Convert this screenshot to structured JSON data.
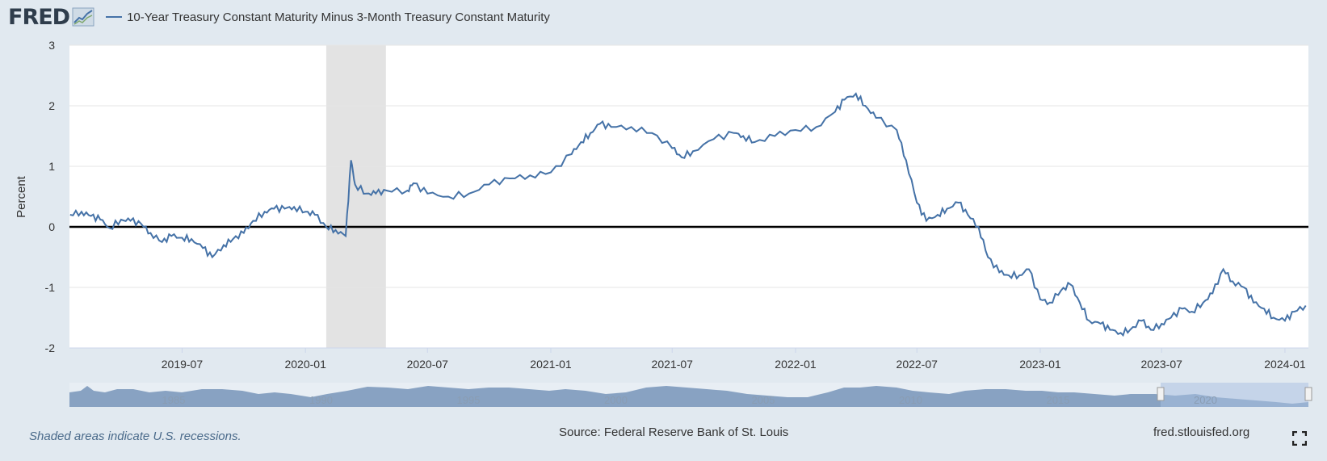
{
  "header": {
    "logo_text": "FRED",
    "legend_label": "10-Year Treasury Constant Maturity Minus 3-Month Treasury Constant Maturity",
    "series_color": "#4572a7"
  },
  "footer": {
    "recession_note": "Shaded areas indicate U.S. recessions.",
    "source": "Source: Federal Reserve Bank of St. Louis",
    "site": "fred.stlouisfed.org"
  },
  "navigator": {
    "labels": [
      "1985",
      "1990",
      "1995",
      "2000",
      "2005",
      "2010",
      "2015",
      "2020"
    ]
  },
  "chart_data": {
    "type": "line",
    "title": "",
    "ylabel": "Percent",
    "xlabel": "",
    "ylim": [
      -2,
      3
    ],
    "xlim": [
      "2019-01-14",
      "2024-02-05"
    ],
    "yticks": [
      3,
      2,
      1,
      0,
      -1,
      -2
    ],
    "xticks": [
      "2019-07",
      "2020-01",
      "2020-07",
      "2021-01",
      "2021-07",
      "2022-01",
      "2022-07",
      "2023-01",
      "2023-07",
      "2024-01"
    ],
    "grid": true,
    "zero_line": true,
    "recession": {
      "start": "2020-02-01",
      "end": "2020-04-30"
    },
    "series": [
      {
        "name": "10-Year Treasury Constant Maturity Minus 3-Month Treasury Constant Maturity",
        "x": [
          "2019-01-15",
          "2019-02-01",
          "2019-02-15",
          "2019-03-01",
          "2019-03-15",
          "2019-04-01",
          "2019-04-15",
          "2019-05-01",
          "2019-05-15",
          "2019-06-01",
          "2019-06-15",
          "2019-07-01",
          "2019-07-15",
          "2019-08-01",
          "2019-08-15",
          "2019-09-01",
          "2019-09-15",
          "2019-10-01",
          "2019-10-15",
          "2019-11-01",
          "2019-11-15",
          "2019-12-01",
          "2019-12-15",
          "2020-01-01",
          "2020-01-15",
          "2020-02-01",
          "2020-02-15",
          "2020-03-01",
          "2020-03-09",
          "2020-03-15",
          "2020-04-01",
          "2020-04-15",
          "2020-05-01",
          "2020-06-01",
          "2020-06-10",
          "2020-07-01",
          "2020-08-01",
          "2020-09-01",
          "2020-10-01",
          "2020-11-01",
          "2020-12-01",
          "2021-01-01",
          "2021-02-01",
          "2021-02-15",
          "2021-03-01",
          "2021-03-15",
          "2021-04-01",
          "2021-05-01",
          "2021-06-01",
          "2021-07-01",
          "2021-07-15",
          "2021-08-01",
          "2021-09-01",
          "2021-10-01",
          "2021-10-15",
          "2021-11-01",
          "2021-12-01",
          "2022-01-01",
          "2022-02-01",
          "2022-03-01",
          "2022-03-15",
          "2022-04-01",
          "2022-04-15",
          "2022-05-01",
          "2022-06-01",
          "2022-06-15",
          "2022-07-01",
          "2022-07-15",
          "2022-08-01",
          "2022-08-15",
          "2022-09-01",
          "2022-09-15",
          "2022-10-01",
          "2022-10-15",
          "2022-11-01",
          "2022-11-15",
          "2022-12-01",
          "2022-12-15",
          "2023-01-01",
          "2023-01-15",
          "2023-02-01",
          "2023-02-15",
          "2023-03-01",
          "2023-03-15",
          "2023-04-01",
          "2023-04-15",
          "2023-05-01",
          "2023-05-15",
          "2023-06-01",
          "2023-06-15",
          "2023-07-01",
          "2023-07-15",
          "2023-08-01",
          "2023-08-15",
          "2023-09-01",
          "2023-09-15",
          "2023-10-01",
          "2023-10-15",
          "2023-11-01",
          "2023-11-15",
          "2023-12-01",
          "2023-12-15",
          "2024-01-01",
          "2024-01-15",
          "2024-02-01"
        ],
        "y": [
          0.2,
          0.25,
          0.18,
          0.12,
          -0.02,
          0.12,
          0.1,
          0.05,
          -0.1,
          -0.25,
          -0.15,
          -0.18,
          -0.2,
          -0.35,
          -0.5,
          -0.3,
          -0.2,
          -0.1,
          0.1,
          0.25,
          0.3,
          0.3,
          0.33,
          0.25,
          0.2,
          0.0,
          -0.05,
          -0.15,
          1.1,
          0.7,
          0.55,
          0.55,
          0.6,
          0.6,
          0.72,
          0.55,
          0.5,
          0.55,
          0.7,
          0.8,
          0.85,
          0.9,
          1.2,
          1.4,
          1.55,
          1.7,
          1.65,
          1.65,
          1.55,
          1.3,
          1.15,
          1.25,
          1.45,
          1.55,
          1.5,
          1.4,
          1.5,
          1.6,
          1.65,
          1.9,
          2.1,
          2.2,
          2.0,
          1.8,
          1.6,
          1.1,
          0.4,
          0.1,
          0.2,
          0.3,
          0.4,
          0.2,
          0.0,
          -0.5,
          -0.75,
          -0.8,
          -0.8,
          -0.7,
          -1.2,
          -1.25,
          -1.05,
          -0.95,
          -1.25,
          -1.55,
          -1.6,
          -1.7,
          -1.75,
          -1.7,
          -1.55,
          -1.7,
          -1.6,
          -1.5,
          -1.35,
          -1.4,
          -1.25,
          -1.1,
          -0.7,
          -0.9,
          -1.0,
          -1.25,
          -1.35,
          -1.5,
          -1.55,
          -1.4,
          -1.3
        ]
      }
    ]
  }
}
